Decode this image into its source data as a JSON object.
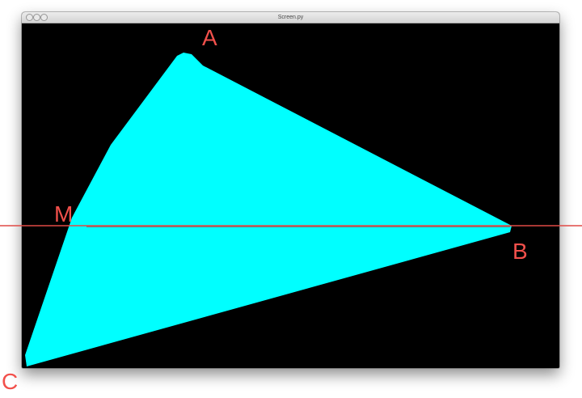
{
  "window": {
    "title": "Screen.py"
  },
  "drawing": {
    "fill_color": "#00ffff",
    "canvas_color": "#000000",
    "guide_color": "#e04a46",
    "segment_color": "#7a7a7a"
  },
  "labels": {
    "a": "A",
    "b": "B",
    "c": "C",
    "m": "M"
  }
}
